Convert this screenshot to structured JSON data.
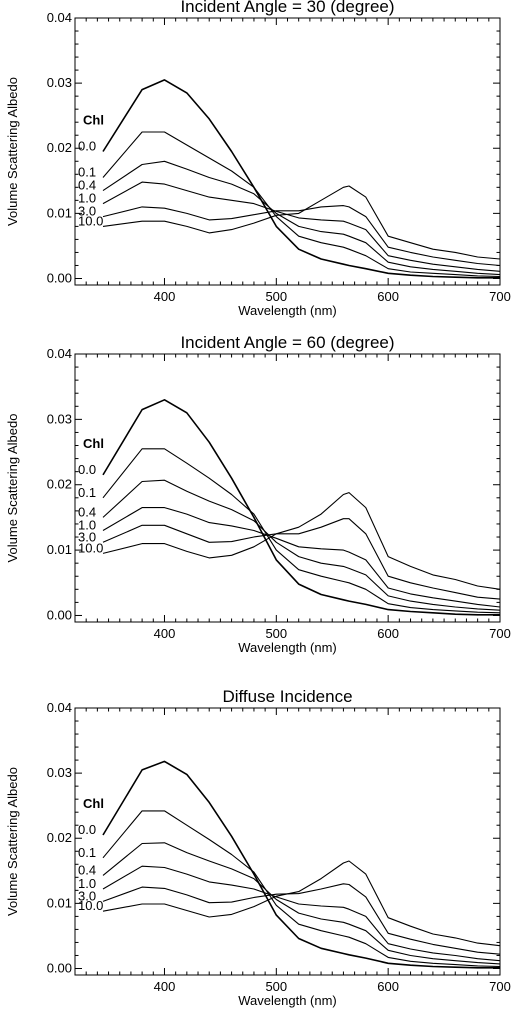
{
  "chart_data": [
    {
      "type": "line",
      "title": "Incident Angle = 30 (degree)",
      "xlabel": "Wavelength (nm)",
      "ylabel": "Volume Scattering Albedo",
      "xlim": [
        320,
        700
      ],
      "ylim": [
        -0.001,
        0.04
      ],
      "xticks": [
        "400",
        "500",
        "600",
        "700"
      ],
      "yticks": [
        "0.00",
        "0.01",
        "0.02",
        "0.03",
        "0.04"
      ],
      "legend_title": "Chl",
      "x": [
        345,
        380,
        400,
        420,
        440,
        460,
        480,
        500,
        520,
        540,
        560,
        565,
        580,
        600,
        620,
        640,
        660,
        680,
        700
      ],
      "series": [
        {
          "name": "0.0",
          "values": [
            0.0195,
            0.029,
            0.0305,
            0.0285,
            0.0245,
            0.0195,
            0.014,
            0.008,
            0.0045,
            0.003,
            0.0022,
            0.002,
            0.0015,
            0.0008,
            0.0005,
            0.0003,
            0.0002,
            0.0001,
            0.0001
          ]
        },
        {
          "name": "0.1",
          "values": [
            0.0155,
            0.0225,
            0.0225,
            0.0205,
            0.0185,
            0.0165,
            0.014,
            0.0095,
            0.0065,
            0.0055,
            0.0048,
            0.0045,
            0.0035,
            0.0015,
            0.001,
            0.0008,
            0.0006,
            0.0004,
            0.0003
          ]
        },
        {
          "name": "0.4",
          "values": [
            0.0135,
            0.0175,
            0.018,
            0.0168,
            0.0155,
            0.0145,
            0.013,
            0.01,
            0.008,
            0.0072,
            0.0068,
            0.0065,
            0.0055,
            0.0025,
            0.0018,
            0.0014,
            0.0011,
            0.0008,
            0.0006
          ]
        },
        {
          "name": "1.0",
          "values": [
            0.0115,
            0.0148,
            0.0145,
            0.0135,
            0.0125,
            0.012,
            0.0115,
            0.0103,
            0.0093,
            0.009,
            0.0088,
            0.0085,
            0.0075,
            0.0035,
            0.0028,
            0.0022,
            0.0018,
            0.0014,
            0.0011
          ]
        },
        {
          "name": "3.0",
          "values": [
            0.0095,
            0.011,
            0.0108,
            0.01,
            0.009,
            0.0092,
            0.0098,
            0.0104,
            0.0104,
            0.011,
            0.0112,
            0.011,
            0.0095,
            0.0048,
            0.004,
            0.0033,
            0.0028,
            0.0023,
            0.002
          ]
        },
        {
          "name": "10.0",
          "values": [
            0.008,
            0.0088,
            0.0088,
            0.008,
            0.007,
            0.0075,
            0.0085,
            0.0097,
            0.01,
            0.012,
            0.014,
            0.0142,
            0.0125,
            0.0065,
            0.0055,
            0.0045,
            0.004,
            0.0033,
            0.003
          ]
        }
      ]
    },
    {
      "type": "line",
      "title": "Incident Angle = 60 (degree)",
      "xlabel": "Wavelength (nm)",
      "ylabel": "Volume Scattering Albedo",
      "xlim": [
        320,
        700
      ],
      "ylim": [
        -0.001,
        0.04
      ],
      "xticks": [
        "400",
        "500",
        "600",
        "700"
      ],
      "yticks": [
        "0.00",
        "0.01",
        "0.02",
        "0.03",
        "0.04"
      ],
      "legend_title": "Chl",
      "x": [
        345,
        380,
        400,
        420,
        440,
        460,
        480,
        500,
        520,
        540,
        560,
        565,
        580,
        600,
        620,
        640,
        660,
        680,
        700
      ],
      "series": [
        {
          "name": "0.0",
          "values": [
            0.0215,
            0.0315,
            0.033,
            0.031,
            0.0265,
            0.021,
            0.015,
            0.0085,
            0.0048,
            0.0032,
            0.0024,
            0.0022,
            0.0017,
            0.0009,
            0.0006,
            0.0004,
            0.0002,
            0.0001,
            0.0001
          ]
        },
        {
          "name": "0.1",
          "values": [
            0.018,
            0.0255,
            0.0255,
            0.0233,
            0.021,
            0.0185,
            0.0155,
            0.01,
            0.007,
            0.006,
            0.0052,
            0.005,
            0.004,
            0.0018,
            0.0012,
            0.0009,
            0.0007,
            0.0005,
            0.0004
          ]
        },
        {
          "name": "0.4",
          "values": [
            0.015,
            0.0205,
            0.0207,
            0.019,
            0.0175,
            0.0162,
            0.0145,
            0.0112,
            0.009,
            0.008,
            0.0075,
            0.0072,
            0.0062,
            0.003,
            0.0022,
            0.0017,
            0.0013,
            0.001,
            0.0008
          ]
        },
        {
          "name": "1.0",
          "values": [
            0.013,
            0.0165,
            0.0165,
            0.0155,
            0.0142,
            0.0137,
            0.013,
            0.0118,
            0.0105,
            0.0102,
            0.01,
            0.0097,
            0.0085,
            0.0042,
            0.0033,
            0.0027,
            0.0022,
            0.0017,
            0.0013
          ]
        },
        {
          "name": "3.0",
          "values": [
            0.0112,
            0.0138,
            0.0138,
            0.0125,
            0.0112,
            0.0113,
            0.012,
            0.0125,
            0.0125,
            0.0135,
            0.0148,
            0.0148,
            0.0125,
            0.006,
            0.005,
            0.0042,
            0.0035,
            0.0028,
            0.0025
          ]
        },
        {
          "name": "10.0",
          "values": [
            0.0095,
            0.011,
            0.011,
            0.0098,
            0.0088,
            0.0092,
            0.0105,
            0.0125,
            0.0135,
            0.0155,
            0.0185,
            0.0188,
            0.0165,
            0.009,
            0.0075,
            0.0062,
            0.0055,
            0.0045,
            0.004
          ]
        }
      ]
    },
    {
      "type": "line",
      "title": "Diffuse Incidence",
      "xlabel": "Wavelength (nm)",
      "ylabel": "Volume Scattering Albedo",
      "xlim": [
        320,
        700
      ],
      "ylim": [
        -0.001,
        0.04
      ],
      "xticks": [
        "400",
        "500",
        "600",
        "700"
      ],
      "yticks": [
        "0.00",
        "0.01",
        "0.02",
        "0.03",
        "0.04"
      ],
      "legend_title": "Chl",
      "x": [
        345,
        380,
        400,
        420,
        440,
        460,
        480,
        500,
        520,
        540,
        560,
        565,
        580,
        600,
        620,
        640,
        660,
        680,
        700
      ],
      "series": [
        {
          "name": "0.0",
          "values": [
            0.0205,
            0.0305,
            0.0318,
            0.0298,
            0.0255,
            0.0203,
            0.0145,
            0.0082,
            0.0046,
            0.0031,
            0.0023,
            0.0021,
            0.0016,
            0.0008,
            0.0005,
            0.0003,
            0.0002,
            0.0001,
            0.0001
          ]
        },
        {
          "name": "0.1",
          "values": [
            0.017,
            0.0242,
            0.0242,
            0.022,
            0.0198,
            0.0175,
            0.0148,
            0.0097,
            0.0068,
            0.0058,
            0.005,
            0.0048,
            0.0038,
            0.0017,
            0.0011,
            0.0008,
            0.0006,
            0.0004,
            0.0003
          ]
        },
        {
          "name": "0.4",
          "values": [
            0.0143,
            0.0192,
            0.0193,
            0.0178,
            0.0165,
            0.0153,
            0.0138,
            0.0106,
            0.0085,
            0.0076,
            0.0071,
            0.0068,
            0.0058,
            0.0028,
            0.002,
            0.0015,
            0.0012,
            0.0009,
            0.0007
          ]
        },
        {
          "name": "1.0",
          "values": [
            0.0122,
            0.0157,
            0.0155,
            0.0145,
            0.0133,
            0.0128,
            0.0122,
            0.011,
            0.0099,
            0.0096,
            0.0094,
            0.0091,
            0.008,
            0.0038,
            0.003,
            0.0024,
            0.002,
            0.0015,
            0.0012
          ]
        },
        {
          "name": "3.0",
          "values": [
            0.0103,
            0.0125,
            0.0123,
            0.0113,
            0.0101,
            0.0102,
            0.0109,
            0.0114,
            0.0115,
            0.0122,
            0.013,
            0.0129,
            0.011,
            0.0054,
            0.0045,
            0.0037,
            0.0031,
            0.0025,
            0.0022
          ]
        },
        {
          "name": "10.0",
          "values": [
            0.0088,
            0.0099,
            0.0099,
            0.0089,
            0.0079,
            0.0083,
            0.0095,
            0.0111,
            0.0118,
            0.0138,
            0.0162,
            0.0165,
            0.0145,
            0.0078,
            0.0065,
            0.0053,
            0.0047,
            0.0039,
            0.0035
          ]
        }
      ]
    }
  ]
}
